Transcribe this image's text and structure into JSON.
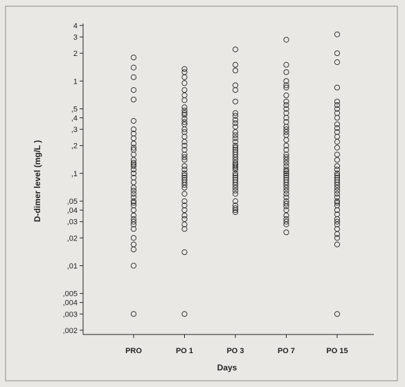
{
  "chart_data": {
    "type": "scatter",
    "title": "",
    "xlabel": "Days",
    "ylabel": "D-dimer level (mg/L )",
    "yscale": "log",
    "ylim": [
      0.0018,
      4.2
    ],
    "y_ticks": [
      {
        "value": 4,
        "label": "4"
      },
      {
        "value": 3,
        "label": "3"
      },
      {
        "value": 2,
        "label": "2"
      },
      {
        "value": 1,
        "label": "1"
      },
      {
        "value": 0.5,
        "label": ",5"
      },
      {
        "value": 0.4,
        "label": ",4"
      },
      {
        "value": 0.3,
        "label": ",3"
      },
      {
        "value": 0.2,
        "label": ",2"
      },
      {
        "value": 0.1,
        "label": ",1"
      },
      {
        "value": 0.05,
        "label": ",05"
      },
      {
        "value": 0.04,
        "label": ",04"
      },
      {
        "value": 0.03,
        "label": ",03"
      },
      {
        "value": 0.02,
        "label": ",02"
      },
      {
        "value": 0.01,
        "label": ",01"
      },
      {
        "value": 0.005,
        "label": ",005"
      },
      {
        "value": 0.004,
        "label": ",004"
      },
      {
        "value": 0.003,
        "label": ",003"
      },
      {
        "value": 0.002,
        "label": ",002"
      }
    ],
    "categories": [
      "PRO",
      "PO 1",
      "PO 3",
      "PO 7",
      "PO 15"
    ],
    "grid": false,
    "marker": "open-circle",
    "marker_color": "#333333",
    "series": [
      {
        "values": [
          1.8,
          1.4,
          1.1,
          0.8,
          0.63,
          0.37,
          0.3,
          0.27,
          0.24,
          0.21,
          0.19,
          0.18,
          0.16,
          0.14,
          0.13,
          0.125,
          0.12,
          0.11,
          0.1,
          0.09,
          0.08,
          0.07,
          0.065,
          0.06,
          0.055,
          0.05,
          0.048,
          0.045,
          0.04,
          0.035,
          0.032,
          0.03,
          0.028,
          0.025,
          0.02,
          0.017,
          0.015,
          0.01,
          0.003
        ]
      },
      {
        "values": [
          1.35,
          1.25,
          1.1,
          0.95,
          0.8,
          0.7,
          0.62,
          0.52,
          0.48,
          0.45,
          0.43,
          0.39,
          0.36,
          0.34,
          0.3,
          0.28,
          0.25,
          0.22,
          0.2,
          0.18,
          0.16,
          0.15,
          0.14,
          0.12,
          0.11,
          0.1,
          0.095,
          0.09,
          0.085,
          0.08,
          0.075,
          0.07,
          0.06,
          0.05,
          0.045,
          0.04,
          0.035,
          0.032,
          0.028,
          0.025,
          0.014,
          0.003
        ]
      },
      {
        "values": [
          2.2,
          1.5,
          1.3,
          0.9,
          0.8,
          0.6,
          0.45,
          0.42,
          0.38,
          0.35,
          0.32,
          0.28,
          0.26,
          0.24,
          0.22,
          0.2,
          0.19,
          0.18,
          0.17,
          0.16,
          0.15,
          0.14,
          0.13,
          0.125,
          0.12,
          0.115,
          0.11,
          0.1,
          0.095,
          0.09,
          0.085,
          0.08,
          0.075,
          0.07,
          0.065,
          0.06,
          0.05,
          0.045,
          0.042,
          0.04,
          0.038
        ]
      },
      {
        "values": [
          2.8,
          1.5,
          1.25,
          1.0,
          0.9,
          0.85,
          0.7,
          0.6,
          0.55,
          0.5,
          0.45,
          0.4,
          0.36,
          0.32,
          0.3,
          0.28,
          0.26,
          0.23,
          0.2,
          0.18,
          0.16,
          0.15,
          0.14,
          0.13,
          0.12,
          0.11,
          0.105,
          0.1,
          0.095,
          0.09,
          0.085,
          0.08,
          0.075,
          0.07,
          0.065,
          0.06,
          0.055,
          0.05,
          0.047,
          0.044,
          0.04,
          0.035,
          0.032,
          0.03,
          0.028,
          0.023
        ]
      },
      {
        "values": [
          3.2,
          2.0,
          1.6,
          0.85,
          0.6,
          0.55,
          0.5,
          0.45,
          0.4,
          0.34,
          0.31,
          0.28,
          0.25,
          0.22,
          0.19,
          0.16,
          0.14,
          0.12,
          0.11,
          0.1,
          0.095,
          0.09,
          0.085,
          0.08,
          0.075,
          0.07,
          0.065,
          0.06,
          0.055,
          0.05,
          0.048,
          0.045,
          0.04,
          0.036,
          0.032,
          0.03,
          0.028,
          0.025,
          0.022,
          0.02,
          0.017,
          0.003
        ]
      }
    ]
  }
}
